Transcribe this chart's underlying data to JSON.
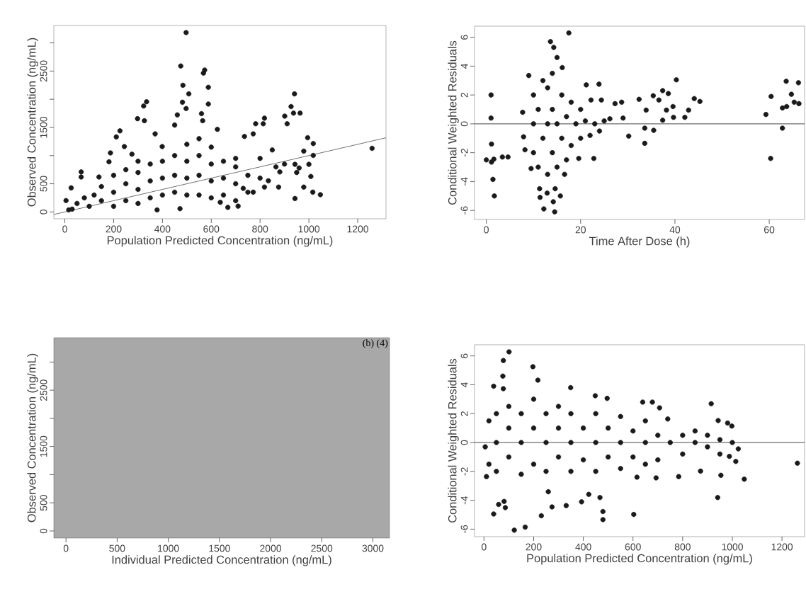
{
  "chart_data": [
    {
      "type": "scatter",
      "xlabel": "Population Predicted Concentration (ng/mL)",
      "ylabel": "Observed Concentration (ng/mL)",
      "xlim": [
        -45,
        1316
      ],
      "ylim": [
        -121,
        3309
      ],
      "xticks": [
        0,
        200,
        400,
        600,
        800,
        1000,
        1200
      ],
      "yticks": [
        0,
        500,
        {
          "value": 1000,
          "label": null
        },
        1500,
        {
          "value": 2000,
          "label": null
        },
        2500,
        {
          "value": 3000,
          "label": null
        }
      ],
      "series": [
        {
          "color": "#1a1a1a",
          "marker": "circle",
          "x": [
            497,
            475,
            573,
            568,
            588,
            484,
            508,
            482,
            497,
            335,
            323,
            298,
            326,
            226,
            211,
            370,
            461,
            450,
            560,
            565,
            588,
            941,
            927,
            937,
            964,
            901,
            818,
            813,
            782,
            911,
            736,
            772,
            995,
            1018,
            625,
            1259,
            1018,
            979,
            943,
            1008,
            1047,
            943,
            1016,
            979,
            876,
            818,
            772,
            731,
            710,
            378,
            472,
            16,
            5,
            26,
            67,
            67,
            140,
            181,
            187,
            244,
            275,
            399,
            637,
            668,
            881,
            834,
            865,
            1000,
            30,
            50,
            80,
            100,
            120,
            150,
            150,
            200,
            200,
            200,
            250,
            250,
            250,
            300,
            300,
            300,
            300,
            350,
            350,
            350,
            400,
            400,
            400,
            450,
            450,
            450,
            500,
            500,
            500,
            500,
            550,
            550,
            550,
            550,
            600,
            600,
            600,
            600,
            650,
            650,
            650,
            700,
            700,
            700,
            700,
            750,
            750,
            800,
            800,
            850,
            900,
            950,
            960
          ],
          "values": [
            3183,
            2590,
            2518,
            2464,
            2212,
            2248,
            2095,
            1947,
            1835,
            1956,
            1880,
            1655,
            1619,
            1439,
            1331,
            1385,
            1722,
            1542,
            1745,
            1619,
            1915,
            2095,
            1870,
            1754,
            1754,
            1700,
            1664,
            1565,
            1565,
            1565,
            1340,
            1385,
            1317,
            1214,
            1466,
            1129,
            1003,
            1079,
            845,
            630,
            306,
            238,
            351,
            441,
            441,
            441,
            351,
            418,
            103,
            36,
            58,
            36,
            202,
            427,
            710,
            620,
            620,
            890,
            1048,
            1160,
            1025,
            1160,
            171,
            81,
            710,
            553,
            800,
            845,
            50,
            150,
            250,
            100,
            300,
            200,
            450,
            100,
            350,
            650,
            200,
            500,
            750,
            150,
            400,
            700,
            900,
            250,
            550,
            850,
            300,
            600,
            900,
            350,
            650,
            1000,
            300,
            600,
            900,
            1200,
            300,
            650,
            1000,
            1300,
            250,
            550,
            850,
            1150,
            300,
            600,
            900,
            200,
            500,
            800,
            950,
            350,
            650,
            600,
            950,
            1100,
            850,
            700,
            780
          ]
        },
        {
          "type": "line",
          "color": "#333333",
          "marker": "none",
          "x": [
            -45,
            1316
          ],
          "values": [
            -45,
            1316
          ]
        }
      ]
    },
    {
      "type": "scatter",
      "xlabel": "Time After Dose (h)",
      "ylabel": "Conditional Weighted Residuals",
      "xlim": [
        -2.5,
        67.5
      ],
      "ylim": [
        -6.63,
        6.77
      ],
      "xticks": [
        0,
        20,
        40,
        60
      ],
      "yticks": [
        -6,
        -4,
        -2,
        0,
        2,
        4,
        6
      ],
      "ref_lines": [
        {
          "axis": "y",
          "value": 0,
          "color": "#1a1a1a"
        }
      ],
      "series": [
        {
          "color": "#1a1a1a",
          "marker": "circle",
          "x": [
            1.0,
            1.0,
            0,
            1.1,
            1.1,
            1.4,
            1.7,
            3.4,
            4.6,
            1.6,
            17.5,
            13.6,
            14.3,
            15.0,
            16.1,
            9.0,
            7.7,
            7.9,
            8.2,
            9.5,
            11.3,
            11.4,
            12.2,
            12.9,
            14.5,
            14.2,
            15.7,
            14.6,
            16.6,
            19.6,
            22.8,
            23.9,
            21.2,
            24.4,
            22.2,
            26.2,
            27.3,
            28.7,
            29.0,
            30.2,
            32.4,
            33.6,
            33.6,
            33.9,
            35.4,
            35.5,
            36.6,
            37.4,
            37.4,
            38.6,
            38.2,
            39.6,
            39.7,
            40.3,
            42.1,
            42.9,
            44.1,
            45.3,
            59.3,
            60.4,
            60.3,
            62.8,
            62.8,
            63.6,
            64.7,
            63.7,
            65.3,
            66.2,
            66.3,
            10,
            10,
            10,
            11,
            11,
            12,
            12,
            13,
            13,
            13,
            14,
            14,
            14,
            15,
            15,
            16,
            16,
            17,
            17,
            18,
            18,
            19,
            20,
            20,
            21,
            22,
            23,
            24,
            25
          ],
          "values": [
            2.0,
            0.4,
            -2.5,
            -1.4,
            -2.65,
            -3.85,
            -5.0,
            -2.3,
            -2.3,
            -2.45,
            6.3,
            5.7,
            5.3,
            4.6,
            3.9,
            3.35,
            0.8,
            -0.9,
            -1.8,
            -3.1,
            -4.5,
            -5.1,
            -5.9,
            -4.8,
            -6.1,
            -5.4,
            -5.0,
            -4.5,
            -3.5,
            -2.4,
            -2.4,
            2.75,
            2.7,
            1.65,
            1.65,
            0.35,
            1.4,
            1.5,
            0.4,
            -0.85,
            1.7,
            -0.3,
            -1.35,
            0.95,
            1.95,
            -0.45,
            1.65,
            2.3,
            0.25,
            2.1,
            0.95,
            1.2,
            0.45,
            3.05,
            0.45,
            0.95,
            1.75,
            1.55,
            0.65,
            1.9,
            -2.4,
            -0.3,
            1.1,
            2.95,
            2.05,
            1.2,
            1.5,
            2.85,
            1.4,
            0,
            2,
            -2,
            -3,
            1,
            3,
            -1,
            0,
            2.5,
            -3.5,
            1,
            -2,
            3.5,
            0,
            -3,
            2,
            -1,
            0.5,
            -2.5,
            1.5,
            -1.5,
            0,
            1,
            -1,
            0.2,
            -0.8,
            0,
            -0.5,
            0.2
          ]
        }
      ]
    },
    {
      "type": "scatter",
      "xlabel": "Individual Predicted Concentration (ng/mL)",
      "ylabel": "Observed Concentration (ng/mL)",
      "xlim": [
        -119,
        3163
      ],
      "ylim": [
        -126,
        3432
      ],
      "xticks": [
        0,
        500,
        1000,
        1500,
        2000,
        2500,
        3000
      ],
      "yticks": [
        0,
        500,
        {
          "value": 1000,
          "label": null
        },
        1500,
        {
          "value": 2000,
          "label": null
        },
        2500,
        {
          "value": 3000,
          "label": null
        }
      ],
      "bands": [
        {
          "axis": "x",
          "from": -119,
          "to": 3163,
          "color": "#a8a8a8"
        }
      ],
      "annotations": [
        "(b) (4)"
      ]
    },
    {
      "type": "scatter",
      "xlabel": "Population Predicted Concentration (ng/mL)",
      "ylabel": "Conditional Weighted Residuals",
      "xlim": [
        -38,
        1291
      ],
      "ylim": [
        -6.52,
        6.77
      ],
      "xticks": [
        0,
        200,
        400,
        600,
        800,
        1000,
        1200
      ],
      "yticks": [
        -6,
        -4,
        -2,
        0,
        2,
        4,
        6
      ],
      "ref_lines": [
        {
          "axis": "y",
          "value": 0,
          "color": "#1a1a1a"
        }
      ],
      "series": [
        {
          "color": "#1a1a1a",
          "marker": "circle",
          "x": [
            101,
            78,
            76,
            197,
            217,
            39,
            349,
            78,
            915,
            639,
            678,
            707,
            943,
            981,
            998,
            740,
            448,
            496,
            1262,
            1048,
            941,
            954,
            872,
            784,
            1014,
            988,
            1024,
            603,
            479,
            479,
            467,
            393,
            331,
            274,
            231,
            166,
            122,
            39,
            59,
            86,
            81,
            422,
            10,
            5,
            259,
            616,
            693,
            20,
            20,
            50,
            50,
            50,
            100,
            100,
            100,
            150,
            150,
            150,
            200,
            200,
            200,
            250,
            250,
            250,
            300,
            300,
            300,
            350,
            350,
            350,
            400,
            400,
            450,
            450,
            450,
            500,
            500,
            550,
            550,
            550,
            600,
            600,
            650,
            650,
            650,
            700,
            700,
            750,
            800,
            800,
            850,
            850,
            900,
            900,
            950,
            950,
            1000
          ],
          "values": [
            6.28,
            5.68,
            4.6,
            5.25,
            4.32,
            3.9,
            3.8,
            3.73,
            2.69,
            2.8,
            2.8,
            2.4,
            1.52,
            1.35,
            1.14,
            1.63,
            3.24,
            3.06,
            -1.43,
            -2.54,
            -3.81,
            -2.27,
            -1.98,
            -2.36,
            -1.31,
            -0.96,
            -0.44,
            -4.98,
            -5.34,
            -4.78,
            -3.81,
            -4.11,
            -4.37,
            -4.46,
            -5.07,
            -5.86,
            -6.07,
            -4.95,
            -4.29,
            -4.51,
            -4.08,
            -3.59,
            -2.36,
            -0.3,
            -3.41,
            -2.4,
            -2.45,
            1.5,
            -1.5,
            0,
            2,
            -2,
            1,
            -1,
            2.5,
            0,
            -2.2,
            2,
            1,
            -1.5,
            3,
            0,
            2,
            -2,
            1,
            -1,
            2.5,
            0,
            -2,
            2,
            1,
            -1.2,
            0,
            2,
            -2,
            1,
            -1,
            0,
            1.8,
            -1.8,
            0.8,
            -1,
            0,
            1.5,
            -1.5,
            0.5,
            -1.2,
            0,
            0.5,
            -0.8,
            0,
            0.8,
            -0.3,
            0.5,
            0.2,
            -0.8,
            0
          ]
        }
      ]
    }
  ]
}
